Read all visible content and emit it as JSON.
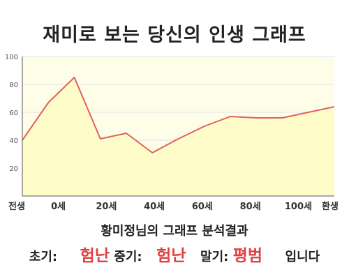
{
  "title": "재미로 보는 당신의 인생 그래프",
  "chart_data": {
    "type": "area",
    "x": [
      0,
      1,
      2,
      3,
      4,
      5,
      6,
      7,
      8,
      9,
      10,
      11,
      12
    ],
    "values": [
      40,
      67,
      85,
      41,
      45,
      31,
      41,
      50,
      57,
      56,
      56,
      60,
      64
    ],
    "x_tick_labels": [
      "전생",
      "0세",
      "20세",
      "40세",
      "60세",
      "80세",
      "100세",
      "환생"
    ],
    "x_tick_positions": [
      0,
      1.5,
      3.5,
      5.5,
      7.5,
      9.5,
      11.5,
      13
    ],
    "ylim": [
      0,
      100
    ],
    "yticks": [
      20,
      40,
      60,
      80,
      100
    ],
    "grid": true,
    "colors": {
      "line": "#e06060",
      "fill": "#fefcc8",
      "plot_bg": "#fefee8",
      "grid": "#e3e3e3",
      "axis": "#555555"
    }
  },
  "analysis": {
    "heading": "황미정님의 그래프 분석결과",
    "early_label": "초기:",
    "early_value": "험난",
    "mid_label": "중기:",
    "mid_value": "험난",
    "late_label": "말기:",
    "late_value": "평범",
    "suffix": "입니다"
  }
}
